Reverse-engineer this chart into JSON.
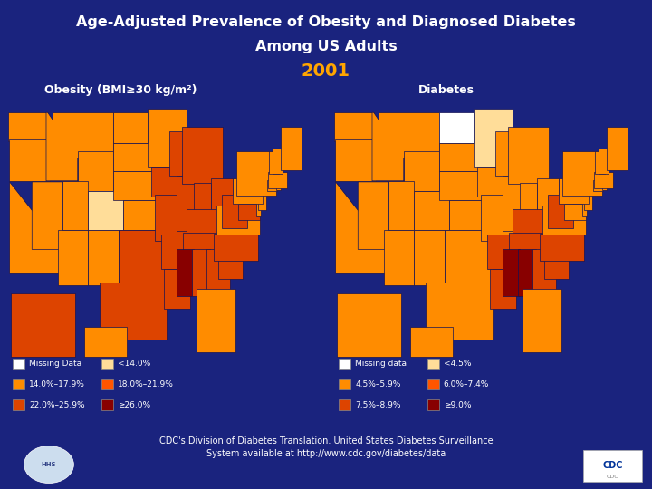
{
  "title_line1": "Age-Adjusted Prevalence of Obesity and Diagnosed Diabetes",
  "title_line2": "Among US Adults",
  "year": "2001",
  "bg_color": "#1a237e",
  "title_color": "#ffffff",
  "year_color": "#ffa500",
  "map_left_title": "Obesity (BMI≥30 kg/m²)",
  "map_right_title": "Diabetes",
  "obesity_colors": {
    "AL": "#dd4400",
    "AK": "#dd4400",
    "AZ": "#ff8c00",
    "AR": "#dd4400",
    "CA": "#ff8c00",
    "CO": "#ffdd99",
    "CT": "#ff8c00",
    "DE": "#ff8c00",
    "FL": "#ff8c00",
    "GA": "#dd4400",
    "HI": "#ff8c00",
    "ID": "#ff8c00",
    "IL": "#dd4400",
    "IN": "#dd4400",
    "IA": "#dd4400",
    "KS": "#ff8c00",
    "KY": "#dd4400",
    "LA": "#dd4400",
    "ME": "#ff8c00",
    "MD": "#dd4400",
    "MA": "#ff8c00",
    "MI": "#dd4400",
    "MN": "#ff8c00",
    "MS": "#880000",
    "MO": "#dd4400",
    "MT": "#ff8c00",
    "NE": "#ff8c00",
    "NV": "#ff8c00",
    "NH": "#ff8c00",
    "NJ": "#ff8c00",
    "NM": "#ff8c00",
    "NY": "#ff8c00",
    "NC": "#dd4400",
    "ND": "#ff8c00",
    "OH": "#dd4400",
    "OK": "#dd4400",
    "OR": "#ff8c00",
    "PA": "#ff8c00",
    "RI": "#ff8c00",
    "SC": "#dd4400",
    "SD": "#ff8c00",
    "TN": "#dd4400",
    "TX": "#dd4400",
    "UT": "#ff8c00",
    "VT": "#ff8c00",
    "VA": "#ff8c00",
    "WA": "#ff8c00",
    "WV": "#dd4400",
    "WI": "#dd4400",
    "WY": "#ff8c00"
  },
  "diabetes_colors": {
    "AL": "#880000",
    "AK": "#ff8c00",
    "AZ": "#ff8c00",
    "AR": "#dd4400",
    "CA": "#ff8c00",
    "CO": "#ff8c00",
    "CT": "#ff8c00",
    "DE": "#ff8c00",
    "FL": "#ff8c00",
    "GA": "#dd4400",
    "HI": "#ff8c00",
    "ID": "#ff8c00",
    "IL": "#ff8c00",
    "IN": "#ff8c00",
    "IA": "#ff8c00",
    "KS": "#ff8c00",
    "KY": "#dd4400",
    "LA": "#dd4400",
    "ME": "#ff8c00",
    "MD": "#ff8c00",
    "MA": "#ff8c00",
    "MI": "#ff8c00",
    "MN": "#ffdd99",
    "MS": "#880000",
    "MO": "#ff8c00",
    "MT": "#ff8c00",
    "NE": "#ff8c00",
    "NV": "#ff8c00",
    "NH": "#ff8c00",
    "NJ": "#ff8c00",
    "NM": "#ff8c00",
    "NY": "#ff8c00",
    "NC": "#dd4400",
    "ND": "#ffffff",
    "OH": "#ff8c00",
    "OK": "#ff8c00",
    "OR": "#ff8c00",
    "PA": "#ff8c00",
    "RI": "#ff8c00",
    "SC": "#dd4400",
    "SD": "#ff8c00",
    "TN": "#dd4400",
    "TX": "#ff8c00",
    "UT": "#ff8c00",
    "VT": "#ff8c00",
    "VA": "#ff8c00",
    "WA": "#ff8c00",
    "WV": "#dd4400",
    "WI": "#ff8c00",
    "WY": "#ff8c00"
  },
  "obesity_legend": [
    {
      "label": "Missing Data",
      "color": "#ffffff"
    },
    {
      "label": "14.0%–17.9%",
      "color": "#ff8c00"
    },
    {
      "label": "22.0%–25.9%",
      "color": "#dd4400"
    },
    {
      "label": "<14.0%",
      "color": "#ffdd99"
    },
    {
      "label": "18.0%–21.9%",
      "color": "#ff5500"
    },
    {
      "label": "≥26.0%",
      "color": "#880000"
    }
  ],
  "diabetes_legend": [
    {
      "label": "Missing data",
      "color": "#ffffff"
    },
    {
      "label": "4.5%–5.9%",
      "color": "#ff8c00"
    },
    {
      "label": "7.5%–8.9%",
      "color": "#dd4400"
    },
    {
      "label": "<4.5%",
      "color": "#ffdd99"
    },
    {
      "label": "6.0%–7.4%",
      "color": "#ff5500"
    },
    {
      "label": "≥9.0%",
      "color": "#880000"
    }
  ],
  "footnote": "CDC's Division of Diabetes Translation. United States Diabetes Surveillance\nSystem available at http://www.cdc.gov/diabetes/data",
  "map_border_color": "#111155"
}
